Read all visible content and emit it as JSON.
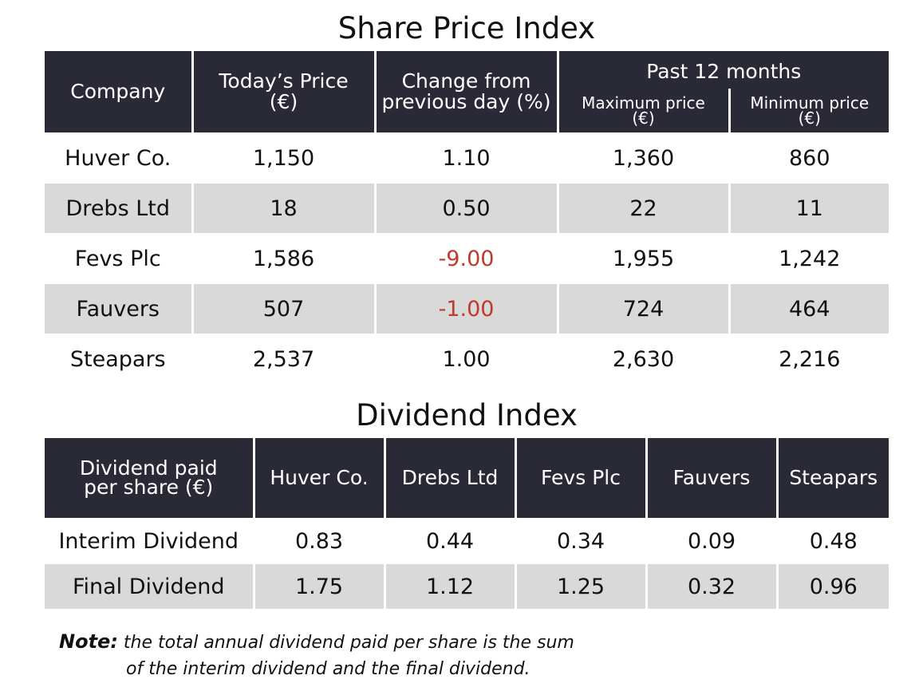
{
  "share_price_index": {
    "title": "Share Price Index",
    "headers": {
      "company": "Company",
      "todays_price": [
        "Today’s Price",
        "(€)"
      ],
      "change": [
        "Change from",
        "previous day (%)"
      ],
      "past_12_months": "Past 12 months",
      "maximum_price": [
        "Maximum price",
        "(€)"
      ],
      "minimum_price": [
        "Minimum price",
        "(€)"
      ]
    },
    "rows": [
      {
        "company": "Huver Co.",
        "price": "1,150",
        "change": "1.10",
        "max": "1,360",
        "min": "860",
        "negative": false
      },
      {
        "company": "Drebs Ltd",
        "price": "18",
        "change": "0.50",
        "max": "22",
        "min": "11",
        "negative": false
      },
      {
        "company": "Fevs Plc",
        "price": "1,586",
        "change": "-9.00",
        "max": "1,955",
        "min": "1,242",
        "negative": true
      },
      {
        "company": "Fauvers",
        "price": "507",
        "change": "-1.00",
        "max": "724",
        "min": "464",
        "negative": true
      },
      {
        "company": "Steapars",
        "price": "2,537",
        "change": "1.00",
        "max": "2,630",
        "min": "2,216",
        "negative": false
      }
    ]
  },
  "dividend_index": {
    "title": "Dividend Index",
    "header_label": [
      "Dividend paid",
      "per share (€)"
    ],
    "companies": [
      "Huver Co.",
      "Drebs Ltd",
      "Fevs Plc",
      "Fauvers",
      "Steapars"
    ],
    "rows": [
      {
        "label": "Interim Dividend",
        "values": [
          "0.83",
          "0.44",
          "0.34",
          "0.09",
          "0.48"
        ]
      },
      {
        "label": "Final Dividend",
        "values": [
          "1.75",
          "1.12",
          "1.25",
          "0.32",
          "0.96"
        ]
      }
    ]
  },
  "note": {
    "label": "Note:",
    "line1": "the total annual dividend paid per share is the sum",
    "line2": "of the interim dividend and the final dividend."
  },
  "colors": {
    "header_bg": "#2a2a37",
    "alt_row_bg": "#d9d9d9",
    "negative_text": "#c0392b"
  }
}
